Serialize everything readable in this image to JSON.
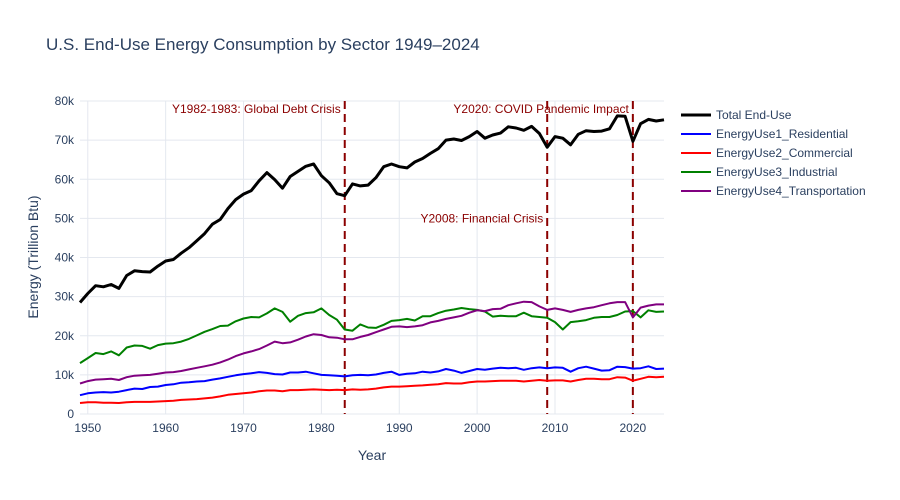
{
  "chart_data": {
    "type": "line",
    "title": "U.S. End-Use Energy Consumption by Sector 1949–2024",
    "xlabel": "Year",
    "ylabel": "Energy (Trillion Btu)",
    "xlim": [
      1949,
      2024
    ],
    "ylim": [
      0,
      80000
    ],
    "x_ticks": [
      1950,
      1960,
      1970,
      1980,
      1990,
      2000,
      2010,
      2020
    ],
    "y_ticks": [
      0,
      10000,
      20000,
      30000,
      40000,
      50000,
      60000,
      70000,
      80000
    ],
    "y_tick_labels": [
      "0",
      "10k",
      "20k",
      "30k",
      "40k",
      "50k",
      "60k",
      "70k",
      "80k"
    ],
    "grid": true,
    "legend_position": "right",
    "x": [
      1949,
      1950,
      1951,
      1952,
      1953,
      1954,
      1955,
      1956,
      1957,
      1958,
      1959,
      1960,
      1961,
      1962,
      1963,
      1964,
      1965,
      1966,
      1967,
      1968,
      1969,
      1970,
      1971,
      1972,
      1973,
      1974,
      1975,
      1976,
      1977,
      1978,
      1979,
      1980,
      1981,
      1982,
      1983,
      1984,
      1985,
      1986,
      1987,
      1988,
      1989,
      1990,
      1991,
      1992,
      1993,
      1994,
      1995,
      1996,
      1997,
      1998,
      1999,
      2000,
      2001,
      2002,
      2003,
      2004,
      2005,
      2006,
      2007,
      2008,
      2009,
      2010,
      2011,
      2012,
      2013,
      2014,
      2015,
      2016,
      2017,
      2018,
      2019,
      2020,
      2021,
      2022,
      2023,
      2024
    ],
    "series": [
      {
        "name": "Total End-Use",
        "color": "#000000",
        "width": 3,
        "values": [
          28500,
          30800,
          32800,
          32500,
          33100,
          32100,
          35400,
          36600,
          36400,
          36300,
          37800,
          39100,
          39500,
          41100,
          42500,
          44300,
          46100,
          48500,
          49700,
          52500,
          54800,
          56200,
          57100,
          59600,
          61700,
          59900,
          57700,
          60700,
          62000,
          63300,
          63900,
          60900,
          59100,
          56300,
          55800,
          58800,
          58300,
          58500,
          60400,
          63200,
          63900,
          63200,
          62900,
          64400,
          65300,
          66600,
          67800,
          70000,
          70300,
          69900,
          70900,
          72200,
          70500,
          71300,
          71800,
          73400,
          73100,
          72500,
          73500,
          71700,
          68200,
          70900,
          70500,
          68800,
          71500,
          72400,
          72200,
          72300,
          72900,
          76200,
          76100,
          69700,
          74200,
          75300,
          74900,
          75200
        ]
      },
      {
        "name": "EnergyUse1_Residential",
        "color": "#0000ff",
        "width": 2,
        "values": [
          4800,
          5300,
          5500,
          5600,
          5500,
          5700,
          6100,
          6500,
          6400,
          6900,
          7000,
          7400,
          7600,
          8000,
          8100,
          8300,
          8400,
          8800,
          9100,
          9500,
          9900,
          10200,
          10400,
          10700,
          10500,
          10200,
          10100,
          10600,
          10600,
          10800,
          10400,
          10000,
          9900,
          9800,
          9600,
          9900,
          10000,
          9900,
          10100,
          10500,
          10800,
          10000,
          10300,
          10400,
          10800,
          10600,
          10900,
          11500,
          11100,
          10500,
          11000,
          11500,
          11300,
          11600,
          11800,
          11700,
          11800,
          11300,
          11700,
          11900,
          11700,
          11900,
          11800,
          10800,
          11700,
          12100,
          11600,
          11100,
          11200,
          12100,
          12000,
          11600,
          11700,
          12200,
          11500,
          11600
        ]
      },
      {
        "name": "EnergyUse2_Commercial",
        "color": "#ff0000",
        "width": 2,
        "values": [
          2800,
          3000,
          3000,
          2900,
          2900,
          2800,
          3000,
          3100,
          3100,
          3100,
          3200,
          3300,
          3400,
          3600,
          3700,
          3800,
          4000,
          4200,
          4500,
          4900,
          5100,
          5300,
          5500,
          5800,
          6000,
          6000,
          5800,
          6100,
          6100,
          6200,
          6300,
          6200,
          6100,
          6200,
          6100,
          6300,
          6200,
          6300,
          6500,
          6800,
          7000,
          7000,
          7100,
          7200,
          7300,
          7500,
          7600,
          7900,
          7800,
          7800,
          8100,
          8300,
          8300,
          8400,
          8500,
          8500,
          8500,
          8300,
          8500,
          8700,
          8500,
          8600,
          8600,
          8300,
          8700,
          9000,
          9000,
          8900,
          8900,
          9400,
          9300,
          8500,
          9000,
          9500,
          9400,
          9500
        ]
      },
      {
        "name": "EnergyUse3_Industrial",
        "color": "#008000",
        "width": 2,
        "values": [
          13000,
          14300,
          15600,
          15300,
          16000,
          15000,
          17000,
          17500,
          17400,
          16700,
          17600,
          18000,
          18100,
          18500,
          19200,
          20100,
          21000,
          21700,
          22500,
          22600,
          23700,
          24400,
          24800,
          24700,
          25700,
          27000,
          26100,
          23600,
          25100,
          25800,
          26000,
          27000,
          25300,
          24100,
          21600,
          21300,
          22900,
          22100,
          22000,
          22800,
          23800,
          24000,
          24300,
          23900,
          25000,
          25000,
          25800,
          26400,
          26700,
          27100,
          26800,
          26600,
          26200,
          24900,
          25100,
          25000,
          25000,
          25900,
          25000,
          24800,
          24600,
          23500,
          21600,
          23500,
          23700,
          24000,
          24600,
          24800,
          24800,
          25300,
          26200,
          26300,
          24700,
          26500,
          26100,
          26200
        ]
      },
      {
        "name": "EnergyUse4_Transportation",
        "color": "#800080",
        "width": 2,
        "values": [
          7800,
          8400,
          8800,
          8900,
          9000,
          8700,
          9400,
          9800,
          9900,
          10000,
          10300,
          10600,
          10700,
          11000,
          11400,
          11800,
          12200,
          12600,
          13200,
          13900,
          14800,
          15500,
          16000,
          16600,
          17500,
          18500,
          18100,
          18300,
          19000,
          19800,
          20400,
          20200,
          19600,
          19500,
          19100,
          19100,
          19700,
          20200,
          20900,
          21600,
          22300,
          22400,
          22200,
          22400,
          22700,
          23400,
          23800,
          24300,
          24700,
          25100,
          25900,
          26500,
          26300,
          26800,
          26900,
          27800,
          28300,
          28700,
          28600,
          27500,
          26600,
          27000,
          26600,
          26100,
          26600,
          27000,
          27300,
          27800,
          28300,
          28600,
          28600,
          24700,
          27200,
          27700,
          28000,
          28000
        ]
      }
    ],
    "annotations": [
      {
        "x": 1983,
        "label": "Y1982-1983: Global Debt Crisis",
        "label_y": 78000
      },
      {
        "x": 2009,
        "label": "Y2008: Financial Crisis",
        "label_y": 50000
      },
      {
        "x": 2020,
        "label": "Y2020: COVID Pandemic Impact",
        "label_y": 78000
      }
    ]
  }
}
